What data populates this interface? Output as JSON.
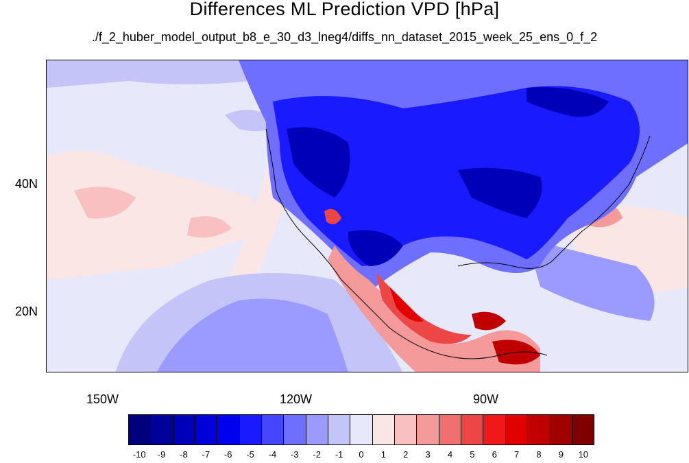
{
  "title": "Differences ML Prediction VPD [hPa]",
  "subtitle": "./f_2_huber_model_output_b8_e_30_d3_lneg4/diffs_nn_dataset_2015_week_25_ens_0_f_2",
  "axes": {
    "lat_labels": [
      "40N",
      "20N"
    ],
    "lon_labels": [
      "150W",
      "120W",
      "90W"
    ]
  },
  "colorbar": {
    "labels": [
      "-10",
      "-9",
      "-8",
      "-7",
      "-6",
      "-5",
      "-4",
      "-3",
      "-2",
      "-1",
      "0",
      "1",
      "2",
      "3",
      "4",
      "5",
      "6",
      "7",
      "8",
      "9",
      "10"
    ],
    "colors": [
      "#00007a",
      "#00009a",
      "#0000b8",
      "#0000d8",
      "#0000f0",
      "#1a1aff",
      "#4646ff",
      "#6e6eff",
      "#9a9aff",
      "#c4c4f8",
      "#e8e8fb",
      "#fbe6e6",
      "#f8c0c0",
      "#f49a9a",
      "#f07070",
      "#ec4646",
      "#f01818",
      "#e00000",
      "#c00000",
      "#a00000",
      "#800000"
    ]
  }
}
